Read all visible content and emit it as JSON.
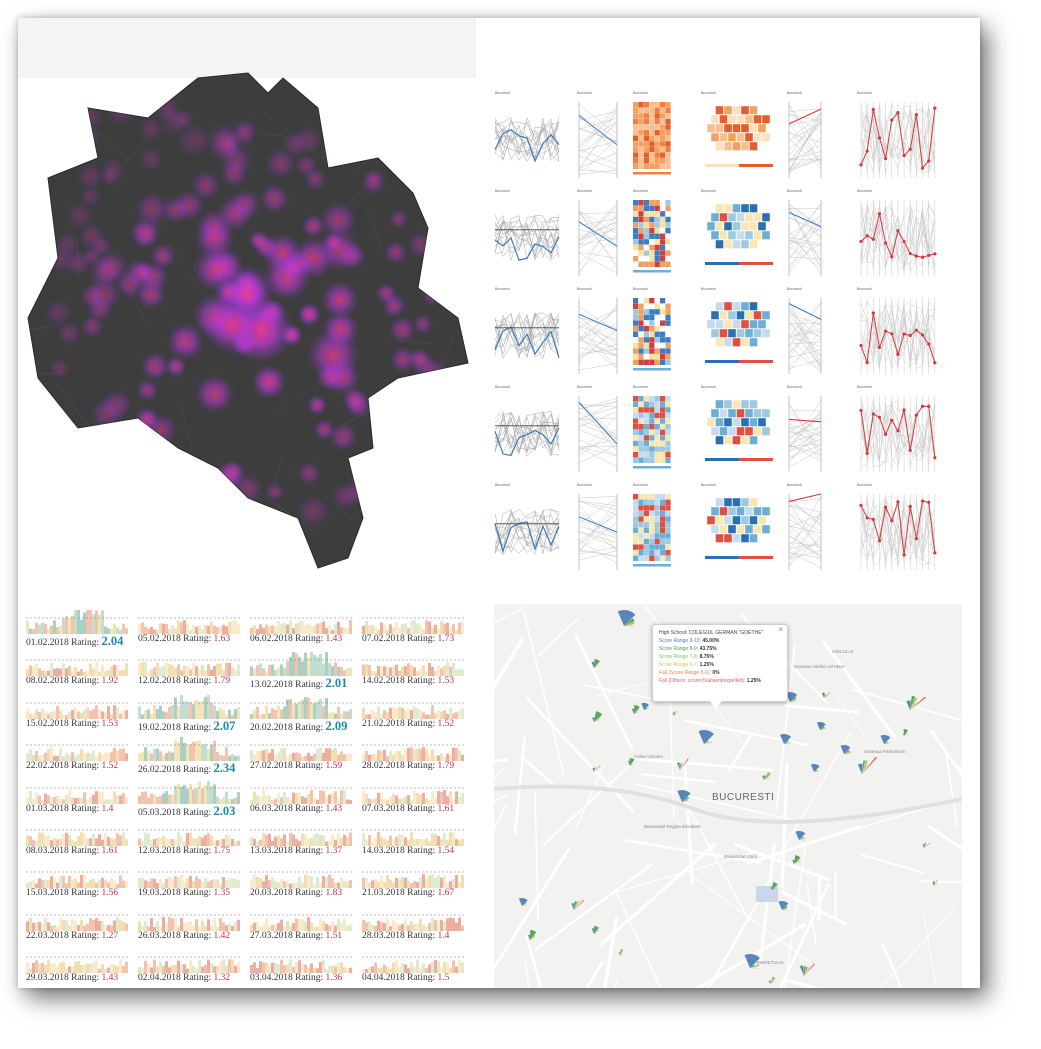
{
  "colors": {
    "map_land": "#3d3d3d",
    "heat_magenta": "#c23ad6",
    "heat_pink": "#ff3a7a",
    "chart_blue": "#3a7dc0",
    "chart_red": "#d23a3a",
    "rating_low": "#c0304a",
    "rating_high": "#1c8aa0",
    "score_9_10": "#4a7db3",
    "score_8_9": "#4ea04a",
    "score_7_8": "#8cc05a",
    "score_6_7": "#e0c050",
    "fail_5_6": "#e8884a",
    "fail_others": "#e06060"
  },
  "multiples": {
    "title_label": "Bucuresti",
    "chart_types": [
      "line-chart",
      "parallel-coordinates",
      "heat-table",
      "hex-map",
      "slope-chart",
      "rank-chart"
    ]
  },
  "sparklines": [
    {
      "date": "01.02.2018",
      "label": "Rating:",
      "rating": "2.04",
      "high": true
    },
    {
      "date": "05.02.2018",
      "label": "Rating:",
      "rating": "1.63",
      "high": false
    },
    {
      "date": "06.02.2018",
      "label": "Rating:",
      "rating": "1.43",
      "high": false
    },
    {
      "date": "07.02.2018",
      "label": "Rating:",
      "rating": "1.73",
      "high": false
    },
    {
      "date": "08.02.2018",
      "label": "Rating:",
      "rating": "1.92",
      "high": false
    },
    {
      "date": "12.02.2018",
      "label": "Rating:",
      "rating": "1.79",
      "high": false
    },
    {
      "date": "13.02.2018",
      "label": "Rating:",
      "rating": "2.01",
      "high": true
    },
    {
      "date": "14.02.2018",
      "label": "Rating:",
      "rating": "1.53",
      "high": false
    },
    {
      "date": "15.02.2018",
      "label": "Rating:",
      "rating": "1.53",
      "high": false
    },
    {
      "date": "19.02.2018",
      "label": "Rating:",
      "rating": "2.07",
      "high": true
    },
    {
      "date": "20.02.2018",
      "label": "Rating:",
      "rating": "2.09",
      "high": true
    },
    {
      "date": "21.02.2018",
      "label": "Rating:",
      "rating": "1.52",
      "high": false
    },
    {
      "date": "22.02.2018",
      "label": "Rating:",
      "rating": "1.52",
      "high": false
    },
    {
      "date": "26.02.2018",
      "label": "Rating:",
      "rating": "2.34",
      "high": true
    },
    {
      "date": "27.02.2018",
      "label": "Rating:",
      "rating": "1.59",
      "high": false
    },
    {
      "date": "28.02.2018",
      "label": "Rating:",
      "rating": "1.79",
      "high": false
    },
    {
      "date": "01.03.2018",
      "label": "Rating:",
      "rating": "1.4",
      "high": false
    },
    {
      "date": "05.03.2018",
      "label": "Rating:",
      "rating": "2.03",
      "high": true
    },
    {
      "date": "06.03.2018",
      "label": "Rating:",
      "rating": "1.43",
      "high": false
    },
    {
      "date": "07.03.2018",
      "label": "Rating:",
      "rating": "1.61",
      "high": false
    },
    {
      "date": "08.03.2018",
      "label": "Rating:",
      "rating": "1.61",
      "high": false
    },
    {
      "date": "12.03.2018",
      "label": "Rating:",
      "rating": "1.75",
      "high": false
    },
    {
      "date": "13.03.2018",
      "label": "Rating:",
      "rating": "1.37",
      "high": false
    },
    {
      "date": "14.03.2018",
      "label": "Rating:",
      "rating": "1.54",
      "high": false
    },
    {
      "date": "15.03.2018",
      "label": "Rating:",
      "rating": "1.56",
      "high": false
    },
    {
      "date": "19.03.2018",
      "label": "Rating:",
      "rating": "1.35",
      "high": false
    },
    {
      "date": "20.03.2018",
      "label": "Rating:",
      "rating": "1.83",
      "high": false
    },
    {
      "date": "21.03.2018",
      "label": "Rating:",
      "rating": "1.67",
      "high": false
    },
    {
      "date": "22.03.2018",
      "label": "Rating:",
      "rating": "1.27",
      "high": false
    },
    {
      "date": "26.03.2018",
      "label": "Rating:",
      "rating": "1.42",
      "high": false
    },
    {
      "date": "27.03.2018",
      "label": "Rating:",
      "rating": "1.51",
      "high": false
    },
    {
      "date": "28.03.2018",
      "label": "Rating:",
      "rating": "1.4",
      "high": false
    },
    {
      "date": "29.03.2018",
      "label": "Rating:",
      "rating": "1.43",
      "high": false
    },
    {
      "date": "02.04.2018",
      "label": "Rating:",
      "rating": "1.32",
      "high": false
    },
    {
      "date": "03.04.2018",
      "label": "Rating:",
      "rating": "1.36",
      "high": false
    },
    {
      "date": "04.04.2018",
      "label": "Rating:",
      "rating": "1.5",
      "high": false
    }
  ],
  "school_map": {
    "city_label": "BUCURESTI",
    "tooltip": {
      "close_glyph": "×",
      "school_label": "High School:",
      "school_name": "COLEGIUL GERMAN \"GOETHE\"",
      "rows": [
        {
          "label": "Score Range 9-10:",
          "value": "45.00%",
          "color_key": "score_9_10"
        },
        {
          "label": "Score Range 8-9:",
          "value": "43.75%",
          "color_key": "score_8_9"
        },
        {
          "label": "Score Range 7-8:",
          "value": "8.75%",
          "color_key": "score_7_8"
        },
        {
          "label": "Score Range 6-7:",
          "value": "1.25%",
          "color_key": "score_6_7"
        },
        {
          "label": "Fail (Score Range 5-6):",
          "value": "0%",
          "color_key": "fail_5_6"
        },
        {
          "label": "Fail (Others: score<5/absent/expelled):",
          "value": "1.25%",
          "color_key": "fail_others"
        }
      ]
    },
    "street_labels": [
      "Soseaua Pantelimon",
      "Bulevardul Unirii",
      "Calea Victoriei",
      "Bulevardul Regina Elisabeta",
      "Soseaua Stefan cel Mare",
      "TINERETULUI",
      "IANCULUI"
    ],
    "close_icon": "close-icon"
  }
}
